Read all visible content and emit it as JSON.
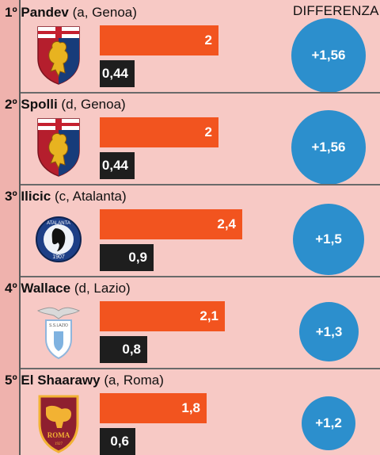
{
  "header": {
    "difference_label": "DIFFERENZA"
  },
  "chart_data": {
    "type": "bar",
    "categories": [
      "1º Pandev (a, Genoa)",
      "2º Spolli (d, Genoa)",
      "3º Ilicic (c, Atalanta)",
      "4º Wallace (d, Lazio)",
      "5º El Shaarawy (a, Roma)"
    ],
    "series": [
      {
        "values": [
          2,
          2,
          2.4,
          2.1,
          1.8
        ],
        "labels": [
          "2",
          "2",
          "2,4",
          "2,1",
          "1,8"
        ],
        "color": "#f2541f"
      },
      {
        "values": [
          0.44,
          0.44,
          0.9,
          0.8,
          0.6
        ],
        "labels": [
          "0,44",
          "0,44",
          "0,9",
          "0,8",
          "0,6"
        ],
        "color": "#1e1e1e"
      }
    ],
    "differences": [
      1.56,
      1.56,
      1.5,
      1.3,
      1.2
    ],
    "difference_labels": [
      "+1,56",
      "+1,56",
      "+1,5",
      "+1,3",
      "+1,2"
    ],
    "difference_color": "#2c8fcd",
    "title": "",
    "xlabel": "",
    "ylabel": "",
    "xlim": [
      0,
      2.6
    ]
  },
  "rows": [
    {
      "rank": "1º",
      "player": "Pandev",
      "detail": "(a, Genoa)",
      "club_icon": "genoa-crest-icon"
    },
    {
      "rank": "2º",
      "player": "Spolli",
      "detail": "(d, Genoa)",
      "club_icon": "genoa-crest-icon"
    },
    {
      "rank": "3º",
      "player": "Ilicic",
      "detail": "(c, Atalanta)",
      "club_icon": "atalanta-crest-icon",
      "crest_text": "ATALANTA",
      "crest_year": "1907"
    },
    {
      "rank": "4º",
      "player": "Wallace",
      "detail": "(d, Lazio)",
      "club_icon": "lazio-crest-icon",
      "crest_text": "S.S.LAZIO"
    },
    {
      "rank": "5º",
      "player": "El Shaarawy",
      "detail": "(a, Roma)",
      "club_icon": "roma-crest-icon",
      "crest_text": "ROMA",
      "crest_year": "1927"
    }
  ]
}
